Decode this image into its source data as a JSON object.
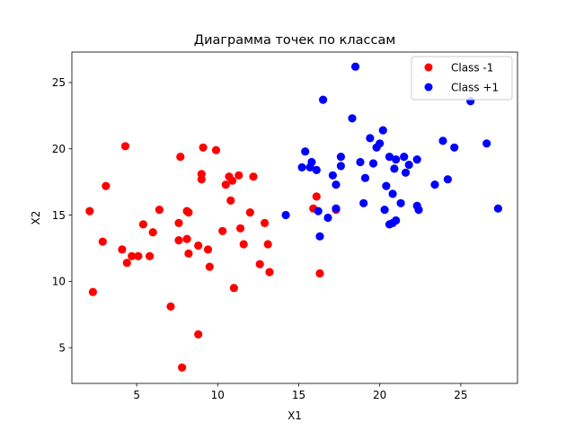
{
  "chart_data": {
    "type": "scatter",
    "title": "Диаграмма точек по классам",
    "xlabel": "X1",
    "ylabel": "X2",
    "xlim": [
      1,
      28.5
    ],
    "ylim": [
      2.3,
      27.3
    ],
    "xticks": [
      5,
      10,
      15,
      20,
      25
    ],
    "yticks": [
      5,
      10,
      15,
      20,
      25
    ],
    "grid": false,
    "legend_position": "top-right",
    "series": [
      {
        "name": "Class -1",
        "color": "#ff0000",
        "points": [
          [
            2.1,
            15.3
          ],
          [
            2.3,
            9.2
          ],
          [
            2.9,
            13.0
          ],
          [
            3.1,
            17.2
          ],
          [
            4.1,
            12.4
          ],
          [
            4.3,
            20.2
          ],
          [
            4.4,
            11.4
          ],
          [
            4.7,
            11.9
          ],
          [
            5.1,
            11.9
          ],
          [
            5.4,
            14.3
          ],
          [
            5.8,
            11.9
          ],
          [
            6.0,
            13.7
          ],
          [
            6.4,
            15.4
          ],
          [
            7.1,
            8.1
          ],
          [
            7.6,
            14.4
          ],
          [
            7.6,
            13.1
          ],
          [
            7.7,
            19.4
          ],
          [
            7.8,
            3.5
          ],
          [
            8.1,
            13.2
          ],
          [
            8.1,
            15.3
          ],
          [
            8.2,
            12.1
          ],
          [
            8.2,
            15.2
          ],
          [
            8.8,
            12.7
          ],
          [
            8.8,
            6.0
          ],
          [
            9.0,
            17.7
          ],
          [
            9.0,
            18.1
          ],
          [
            9.1,
            20.1
          ],
          [
            9.4,
            12.4
          ],
          [
            9.5,
            11.1
          ],
          [
            9.9,
            19.9
          ],
          [
            10.3,
            13.8
          ],
          [
            10.5,
            17.3
          ],
          [
            10.7,
            17.9
          ],
          [
            10.8,
            16.1
          ],
          [
            10.9,
            17.6
          ],
          [
            11.0,
            9.5
          ],
          [
            11.3,
            18.0
          ],
          [
            11.4,
            14.0
          ],
          [
            11.6,
            12.8
          ],
          [
            12.0,
            15.2
          ],
          [
            12.2,
            17.9
          ],
          [
            12.6,
            11.3
          ],
          [
            12.9,
            14.4
          ],
          [
            13.1,
            12.8
          ],
          [
            13.2,
            10.7
          ],
          [
            15.9,
            15.5
          ],
          [
            16.1,
            16.4
          ],
          [
            16.3,
            10.6
          ],
          [
            17.3,
            15.4
          ]
        ]
      },
      {
        "name": "Class +1",
        "color": "#0000ff",
        "points": [
          [
            14.2,
            15.0
          ],
          [
            15.2,
            18.6
          ],
          [
            15.4,
            19.8
          ],
          [
            15.7,
            18.6
          ],
          [
            15.8,
            19.0
          ],
          [
            16.1,
            18.4
          ],
          [
            16.2,
            15.3
          ],
          [
            16.3,
            13.4
          ],
          [
            16.5,
            23.7
          ],
          [
            16.8,
            14.8
          ],
          [
            17.1,
            18.0
          ],
          [
            17.3,
            17.3
          ],
          [
            17.3,
            15.5
          ],
          [
            17.6,
            18.7
          ],
          [
            17.6,
            19.4
          ],
          [
            18.3,
            22.3
          ],
          [
            18.5,
            26.2
          ],
          [
            18.8,
            19.0
          ],
          [
            19.0,
            15.9
          ],
          [
            19.1,
            17.8
          ],
          [
            19.4,
            20.8
          ],
          [
            19.6,
            18.9
          ],
          [
            19.8,
            20.1
          ],
          [
            20.0,
            20.4
          ],
          [
            20.2,
            21.4
          ],
          [
            20.3,
            15.4
          ],
          [
            20.4,
            17.2
          ],
          [
            20.6,
            19.4
          ],
          [
            20.6,
            14.3
          ],
          [
            20.8,
            16.6
          ],
          [
            20.8,
            14.4
          ],
          [
            20.9,
            18.5
          ],
          [
            21.0,
            19.2
          ],
          [
            21.0,
            14.6
          ],
          [
            21.3,
            15.9
          ],
          [
            21.5,
            19.4
          ],
          [
            21.6,
            18.2
          ],
          [
            21.8,
            18.8
          ],
          [
            22.3,
            19.2
          ],
          [
            22.3,
            15.7
          ],
          [
            22.4,
            15.4
          ],
          [
            23.4,
            17.3
          ],
          [
            23.9,
            20.6
          ],
          [
            24.2,
            17.7
          ],
          [
            24.6,
            20.1
          ],
          [
            25.6,
            23.6
          ],
          [
            26.6,
            20.4
          ],
          [
            27.3,
            15.5
          ]
        ]
      }
    ]
  }
}
